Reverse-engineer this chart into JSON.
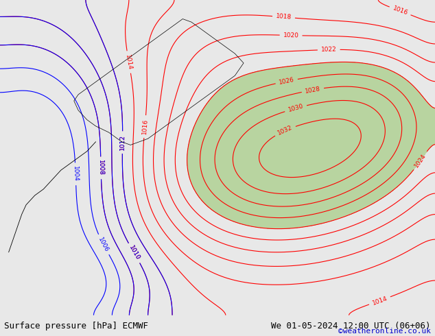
{
  "title_left": "Surface pressure [hPa] ECMWF",
  "title_right": "We 01-05-2024 12:00 UTC (06+06)",
  "credit": "©weatheronline.co.uk",
  "bg_color": "#e8e8e8",
  "map_bg": "#e8e8e8",
  "land_color": "#d4d4d4",
  "green_area": "#b8d4a0",
  "fig_width": 6.34,
  "fig_height": 4.9,
  "dpi": 100,
  "bottom_bar_color": "#ffffff",
  "bottom_bar_height": 0.062,
  "title_left_color": "#000000",
  "title_right_color": "#000000",
  "credit_color": "#0000cc",
  "font_size_title": 9,
  "font_size_credit": 8
}
